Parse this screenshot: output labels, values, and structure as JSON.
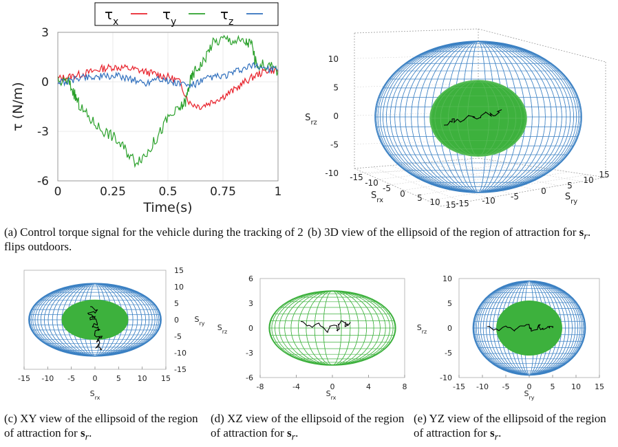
{
  "chart_data": [
    {
      "id": "a",
      "type": "line",
      "xlabel": "Time(s)",
      "ylabel": "τ (N/m)",
      "xlim": [
        0,
        1
      ],
      "ylim": [
        -6,
        3
      ],
      "x_ticks": [
        "0",
        "0.25",
        "0.5",
        "0.75",
        "1"
      ],
      "y_ticks": [
        "3",
        "0",
        "-3",
        "-6"
      ],
      "grid": true,
      "legend": "top",
      "series": [
        {
          "name": "τx",
          "color": "#e8202a",
          "points": [
            [
              0,
              0.2
            ],
            [
              0.05,
              0.3
            ],
            [
              0.1,
              0.45
            ],
            [
              0.15,
              0.6
            ],
            [
              0.2,
              0.8
            ],
            [
              0.25,
              0.9
            ],
            [
              0.3,
              0.85
            ],
            [
              0.35,
              0.75
            ],
            [
              0.4,
              0.6
            ],
            [
              0.45,
              0.45
            ],
            [
              0.5,
              0.3
            ],
            [
              0.55,
              0.05
            ],
            [
              0.6,
              -1.3
            ],
            [
              0.65,
              -1.5
            ],
            [
              0.7,
              -1.2
            ],
            [
              0.75,
              -0.9
            ],
            [
              0.8,
              -0.5
            ],
            [
              0.85,
              0.0
            ],
            [
              0.9,
              0.4
            ],
            [
              0.95,
              0.7
            ],
            [
              1.0,
              0.7
            ]
          ]
        },
        {
          "name": "τy",
          "color": "#2aa02a",
          "points": [
            [
              0,
              0.0
            ],
            [
              0.05,
              0.0
            ],
            [
              0.08,
              -0.9
            ],
            [
              0.1,
              -1.5
            ],
            [
              0.15,
              -2.3
            ],
            [
              0.2,
              -2.9
            ],
            [
              0.25,
              -3.3
            ],
            [
              0.3,
              -4.0
            ],
            [
              0.35,
              -4.8
            ],
            [
              0.4,
              -4.4
            ],
            [
              0.45,
              -3.4
            ],
            [
              0.5,
              -2.2
            ],
            [
              0.55,
              -1.7
            ],
            [
              0.58,
              -1.2
            ],
            [
              0.6,
              0.0
            ],
            [
              0.62,
              0.6
            ],
            [
              0.66,
              1.2
            ],
            [
              0.7,
              2.3
            ],
            [
              0.75,
              2.6
            ],
            [
              0.8,
              2.5
            ],
            [
              0.85,
              2.4
            ],
            [
              0.88,
              2.3
            ],
            [
              0.9,
              1.1
            ],
            [
              0.95,
              1.0
            ],
            [
              1.0,
              0.7
            ]
          ]
        },
        {
          "name": "τz",
          "color": "#2f6fbd",
          "points": [
            [
              0,
              0.0
            ],
            [
              0.05,
              0.0
            ],
            [
              0.1,
              0.3
            ],
            [
              0.15,
              0.3
            ],
            [
              0.2,
              0.3
            ],
            [
              0.25,
              0.35
            ],
            [
              0.3,
              0.3
            ],
            [
              0.35,
              0.1
            ],
            [
              0.4,
              -0.1
            ],
            [
              0.45,
              0.3
            ],
            [
              0.5,
              0.0
            ],
            [
              0.55,
              -0.1
            ],
            [
              0.6,
              -0.25
            ],
            [
              0.65,
              0.0
            ],
            [
              0.7,
              0.3
            ],
            [
              0.75,
              0.3
            ],
            [
              0.8,
              0.55
            ],
            [
              0.85,
              0.8
            ],
            [
              0.9,
              1.0
            ],
            [
              0.95,
              0.8
            ],
            [
              1.0,
              0.7
            ]
          ]
        }
      ]
    },
    {
      "id": "b",
      "type": "scatter",
      "view": "3D",
      "xlabel": "Srx",
      "ylabel": "Sry",
      "zlabel": "Srz",
      "z_ticks": [
        "10",
        "5",
        "0",
        "-5",
        "-10"
      ],
      "x_ticks": [
        "-15",
        "-10",
        "-5",
        "0",
        "5",
        "10",
        "15"
      ],
      "y_ticks": [
        "-15",
        "-10",
        "-5",
        "0",
        "5",
        "10",
        "15"
      ],
      "outer_ellipsoid_color": "#3b80c3",
      "inner_ellipsoid_color": "#3db13d",
      "trajectory_color": "#000000"
    },
    {
      "id": "c",
      "type": "scatter",
      "view": "XY",
      "xlabel": "Srx",
      "ylabel": "Sry",
      "xlim": [
        -15,
        15
      ],
      "ylim": [
        -15,
        15
      ],
      "x_ticks": [
        "-15",
        "-10",
        "-5",
        "0",
        "5",
        "10",
        "15"
      ],
      "y_ticks": [
        "15",
        "10",
        "5",
        "0",
        "-5",
        "-10",
        "-15"
      ],
      "outer_semi_axes": [
        14,
        11
      ],
      "inner_semi_axes": [
        7,
        6
      ],
      "trajectory": [
        [
          -1,
          4
        ],
        [
          0.5,
          3
        ],
        [
          -1.5,
          2
        ],
        [
          0,
          1
        ],
        [
          -1,
          0
        ],
        [
          0.5,
          -1
        ],
        [
          -0.5,
          -2
        ],
        [
          1,
          -3
        ],
        [
          0,
          -4
        ],
        [
          1.5,
          -5
        ],
        [
          0.5,
          -6
        ],
        [
          1,
          -7
        ],
        [
          0.5,
          -8
        ],
        [
          1,
          -9
        ]
      ]
    },
    {
      "id": "d",
      "type": "scatter",
      "view": "XZ",
      "xlabel": "Srx",
      "ylabel": "Srz",
      "xlim": [
        -8,
        8
      ],
      "ylim": [
        -6,
        6
      ],
      "x_ticks": [
        "-8",
        "-4",
        "0",
        "4",
        "8"
      ],
      "y_ticks": [
        "6",
        "3",
        "0",
        "-3",
        "-6"
      ],
      "inner_semi_axes": [
        7,
        4.5
      ],
      "trajectory": [
        [
          -3.5,
          0.8
        ],
        [
          -2.5,
          0.3
        ],
        [
          -1.5,
          0.6
        ],
        [
          -0.5,
          -0.5
        ],
        [
          0,
          0.3
        ],
        [
          0.5,
          -0.3
        ],
        [
          1,
          0.9
        ],
        [
          1.5,
          0.2
        ],
        [
          2,
          0.7
        ]
      ]
    },
    {
      "id": "e",
      "type": "scatter",
      "view": "YZ",
      "xlabel": "Sry",
      "ylabel": "Srz",
      "xlim": [
        -15,
        15
      ],
      "ylim": [
        -10,
        10
      ],
      "x_ticks": [
        "-15",
        "-10",
        "-5",
        "0",
        "5",
        "10",
        "15"
      ],
      "y_ticks": [
        "10",
        "5",
        "0",
        "-5",
        "-10"
      ],
      "outer_semi_axes": [
        12,
        9.5
      ],
      "inner_semi_axes": [
        7,
        5.5
      ],
      "trajectory": [
        [
          -9,
          0.3
        ],
        [
          -7,
          -0.2
        ],
        [
          -5,
          0.4
        ],
        [
          -3,
          -0.3
        ],
        [
          -1,
          0.4
        ],
        [
          0,
          0.1
        ],
        [
          1,
          -0.4
        ],
        [
          2,
          0.6
        ],
        [
          3,
          0.0
        ],
        [
          4,
          0.3
        ],
        [
          5,
          0.0
        ]
      ]
    }
  ],
  "captions": {
    "a": {
      "text": "(a) Control torque signal for the vehicle during the tracking of 2 flips outdoors."
    },
    "b": {
      "text": "(b) 3D view of the ellipsoid of the region of attraction for ",
      "bold": "s",
      "sub": "r",
      "end": "."
    },
    "c": {
      "text": "(c) XY view of the ellipsoid of the region of attraction for ",
      "bold": "s",
      "sub": "r",
      "end": "."
    },
    "d": {
      "text": "(d) XZ view of the ellipsoid of the region of attraction for ",
      "bold": "s",
      "sub": "r",
      "end": "."
    },
    "e": {
      "text": "(e) YZ view of the ellipsoid of the region of attraction for ",
      "bold": "s",
      "sub": "r",
      "end": "."
    }
  }
}
